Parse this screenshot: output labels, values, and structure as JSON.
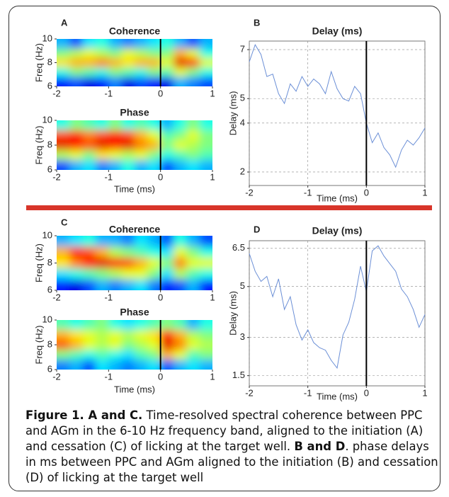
{
  "chart_data": [
    {
      "type": "heatmap",
      "panel": "A",
      "title": "Coherence",
      "ylabel": "Freq (Hz)",
      "xlim": [
        -2,
        1
      ],
      "xticks": [
        -2,
        -1,
        0,
        1
      ],
      "ylim": [
        6,
        10
      ],
      "yticks": [
        6,
        8,
        10
      ],
      "vline": 0,
      "values": [
        [
          0.3,
          0.2,
          0.35,
          0.4,
          0.3,
          0.25,
          0.3,
          0.35,
          0.4,
          0.3,
          0.2,
          0.3
        ],
        [
          0.5,
          0.55,
          0.6,
          0.55,
          0.5,
          0.6,
          0.55,
          0.5,
          0.5,
          0.7,
          0.6,
          0.4
        ],
        [
          0.65,
          0.7,
          0.7,
          0.75,
          0.7,
          0.65,
          0.7,
          0.7,
          0.6,
          0.9,
          0.85,
          0.6
        ],
        [
          0.4,
          0.5,
          0.45,
          0.4,
          0.5,
          0.45,
          0.4,
          0.5,
          0.45,
          0.6,
          0.5,
          0.4
        ],
        [
          0.15,
          0.2,
          0.1,
          0.15,
          0.25,
          0.1,
          0.2,
          0.15,
          0.1,
          0.3,
          0.25,
          0.2
        ]
      ]
    },
    {
      "type": "heatmap",
      "title": "Phase",
      "ylabel": "Freq (Hz)",
      "xlabel": "Time (ms)",
      "xlim": [
        -2,
        1
      ],
      "xticks": [
        -2,
        -1,
        0,
        1
      ],
      "ylim": [
        6,
        10
      ],
      "yticks": [
        6,
        8,
        10
      ],
      "vline": 0,
      "values": [
        [
          0.4,
          0.5,
          0.45,
          0.4,
          0.5,
          0.4,
          0.45,
          0.4,
          0.3,
          0.4,
          0.5,
          0.4
        ],
        [
          0.8,
          0.85,
          0.75,
          0.8,
          0.85,
          0.8,
          0.7,
          0.6,
          0.45,
          0.5,
          0.6,
          0.5
        ],
        [
          0.9,
          0.85,
          0.8,
          0.9,
          0.85,
          0.9,
          0.75,
          0.7,
          0.5,
          0.6,
          0.55,
          0.5
        ],
        [
          0.55,
          0.6,
          0.5,
          0.65,
          0.6,
          0.55,
          0.6,
          0.5,
          0.4,
          0.45,
          0.5,
          0.45
        ],
        [
          0.2,
          0.3,
          0.35,
          0.25,
          0.3,
          0.4,
          0.3,
          0.35,
          0.2,
          0.3,
          0.35,
          0.3
        ]
      ]
    },
    {
      "type": "line",
      "panel": "B",
      "title": "Delay (ms)",
      "ylabel": "Delay (ms)",
      "xlabel": "Time (ms)",
      "xlim": [
        -2,
        1
      ],
      "xticks": [
        -2,
        -1,
        0,
        1
      ],
      "ylim": [
        1.45,
        7.35
      ],
      "yticks": [
        2,
        4,
        5,
        7
      ],
      "grid": true,
      "vline": 0,
      "color": "#6b8fd6",
      "x": [
        -2,
        -1.9,
        -1.8,
        -1.7,
        -1.6,
        -1.5,
        -1.4,
        -1.3,
        -1.2,
        -1.1,
        -1,
        -0.9,
        -0.8,
        -0.7,
        -0.6,
        -0.5,
        -0.4,
        -0.3,
        -0.2,
        -0.1,
        0,
        0.1,
        0.2,
        0.3,
        0.4,
        0.5,
        0.6,
        0.7,
        0.8,
        0.9,
        1
      ],
      "values": [
        6.5,
        7.2,
        6.8,
        5.9,
        6.0,
        5.2,
        4.8,
        5.6,
        5.3,
        5.9,
        5.5,
        5.8,
        5.6,
        5.2,
        6.1,
        5.4,
        5.0,
        4.9,
        5.5,
        5.2,
        4.0,
        3.2,
        3.6,
        3.0,
        2.7,
        2.2,
        2.9,
        3.3,
        3.1,
        3.4,
        3.8
      ]
    },
    {
      "type": "heatmap",
      "panel": "C",
      "title": "Coherence",
      "ylabel": "Freq (Hz)",
      "xlim": [
        -2,
        1
      ],
      "xticks": [
        -2,
        -1,
        0,
        1
      ],
      "ylim": [
        6,
        10
      ],
      "yticks": [
        6,
        8,
        10
      ],
      "vline": 0,
      "values": [
        [
          0.3,
          0.35,
          0.4,
          0.3,
          0.3,
          0.25,
          0.35,
          0.3,
          0.2,
          0.4,
          0.3,
          0.2
        ],
        [
          0.7,
          0.85,
          0.8,
          0.7,
          0.55,
          0.5,
          0.45,
          0.4,
          0.35,
          0.6,
          0.5,
          0.4
        ],
        [
          0.65,
          0.75,
          0.85,
          0.9,
          0.85,
          0.8,
          0.7,
          0.6,
          0.5,
          0.75,
          0.6,
          0.6
        ],
        [
          0.35,
          0.4,
          0.45,
          0.5,
          0.55,
          0.6,
          0.6,
          0.5,
          0.35,
          0.55,
          0.45,
          0.4
        ],
        [
          0.15,
          0.1,
          0.2,
          0.3,
          0.25,
          0.3,
          0.35,
          0.25,
          0.15,
          0.2,
          0.3,
          0.15
        ]
      ]
    },
    {
      "type": "heatmap",
      "title": "Phase",
      "ylabel": "Freq (Hz)",
      "xlabel": "Time (ms)",
      "xlim": [
        -2,
        1
      ],
      "xticks": [
        -2,
        -1,
        0,
        1
      ],
      "ylim": [
        6,
        10
      ],
      "yticks": [
        6,
        8,
        10
      ],
      "vline": 0,
      "values": [
        [
          0.45,
          0.4,
          0.45,
          0.5,
          0.4,
          0.35,
          0.4,
          0.45,
          0.5,
          0.45,
          0.3,
          0.4
        ],
        [
          0.7,
          0.65,
          0.6,
          0.55,
          0.6,
          0.55,
          0.6,
          0.65,
          0.85,
          0.7,
          0.55,
          0.5
        ],
        [
          0.8,
          0.7,
          0.6,
          0.55,
          0.6,
          0.5,
          0.55,
          0.6,
          0.9,
          0.75,
          0.6,
          0.55
        ],
        [
          0.5,
          0.45,
          0.4,
          0.45,
          0.4,
          0.35,
          0.45,
          0.5,
          0.7,
          0.6,
          0.45,
          0.5
        ],
        [
          0.25,
          0.3,
          0.2,
          0.35,
          0.3,
          0.25,
          0.3,
          0.35,
          0.2,
          0.3,
          0.35,
          0.3
        ]
      ]
    },
    {
      "type": "line",
      "panel": "D",
      "title": "Delay (ms)",
      "ylabel": "Delay (ms)",
      "xlabel": "Time (ms)",
      "xlim": [
        -2,
        1
      ],
      "xticks": [
        -2,
        -1,
        0,
        1
      ],
      "ylim": [
        1.1,
        6.8
      ],
      "yticks": [
        1.5,
        3,
        5,
        6.5
      ],
      "grid": true,
      "vline": 0,
      "color": "#6b8fd6",
      "x": [
        -2,
        -1.9,
        -1.8,
        -1.7,
        -1.6,
        -1.5,
        -1.4,
        -1.3,
        -1.2,
        -1.1,
        -1,
        -0.9,
        -0.8,
        -0.7,
        -0.6,
        -0.5,
        -0.4,
        -0.3,
        -0.2,
        -0.1,
        0,
        0.1,
        0.2,
        0.3,
        0.4,
        0.5,
        0.6,
        0.7,
        0.8,
        0.9,
        1
      ],
      "values": [
        6.3,
        5.6,
        5.2,
        5.4,
        4.6,
        5.3,
        4.1,
        4.6,
        3.5,
        2.9,
        3.3,
        2.8,
        2.6,
        2.5,
        2.1,
        1.8,
        3.1,
        3.6,
        4.5,
        5.8,
        4.8,
        6.4,
        6.6,
        6.2,
        5.9,
        5.6,
        4.9,
        4.6,
        4.1,
        3.4,
        3.9
      ]
    }
  ],
  "caption": [
    {
      "text": "Figure 1. A and C.",
      "bold": true
    },
    {
      "text": " Time-resolved spectral coherence between PPC and AGm in the 6-10 Hz frequency band, aligned to the initiation (A) and cessation (C) of licking at the target well. ",
      "bold": false
    },
    {
      "text": "B and D",
      "bold": true
    },
    {
      "text": ". phase delays in ms between PPC and AGm aligned to the initiation (B) and cessation (D) of licking at the target well",
      "bold": false
    }
  ]
}
